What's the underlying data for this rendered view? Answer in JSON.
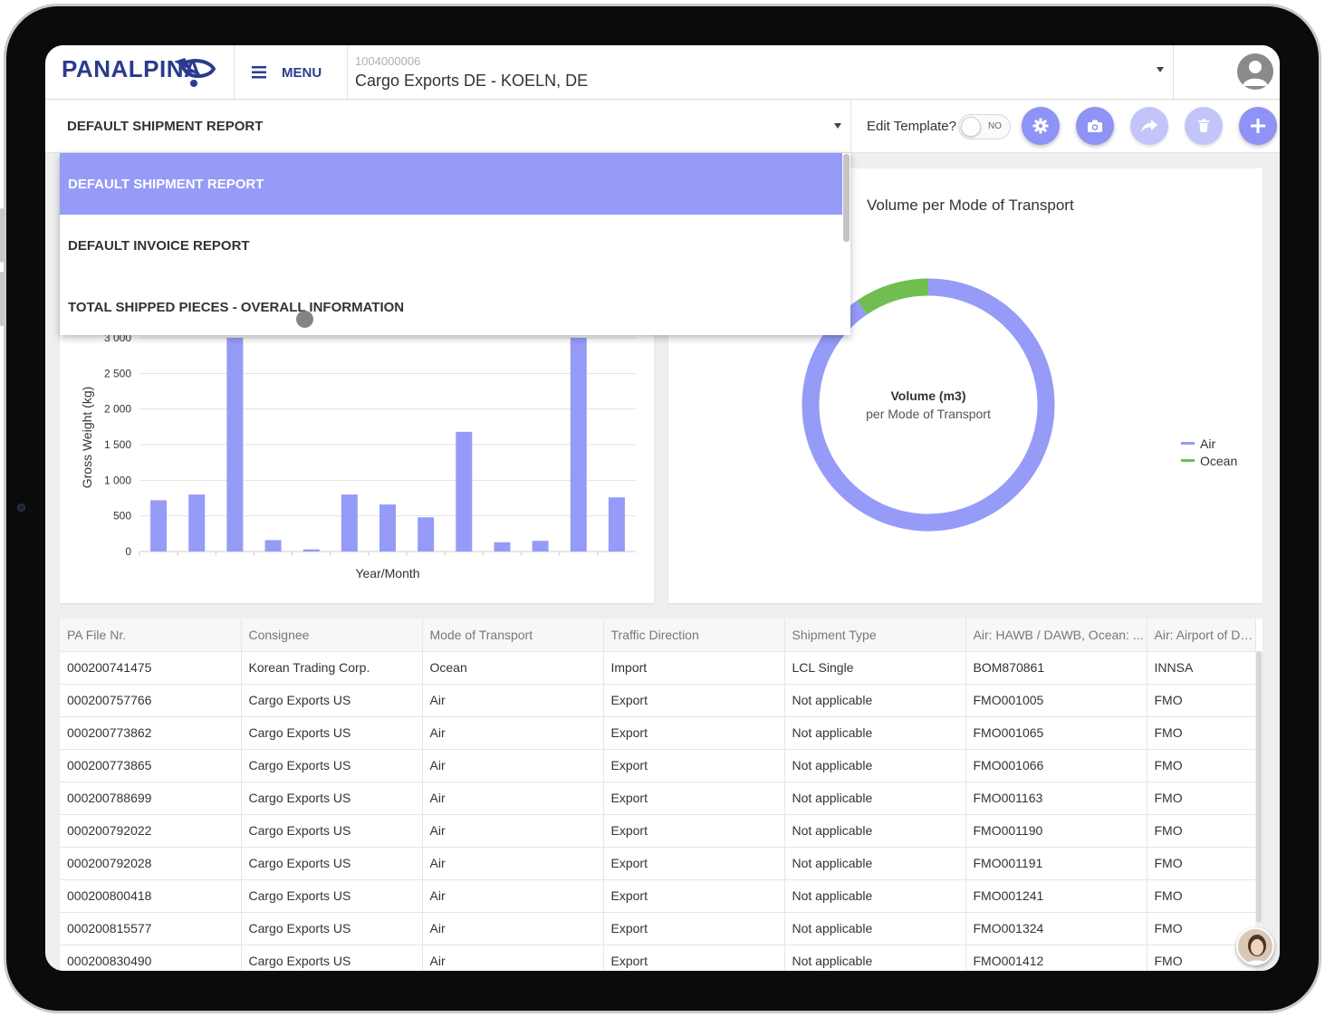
{
  "header": {
    "logo_text": "PANALPINA",
    "menu_label": "MENU",
    "account_id": "1004000006",
    "account_name": "Cargo Exports DE - KOELN, DE"
  },
  "toolbar": {
    "report_selected": "DEFAULT SHIPMENT REPORT",
    "edit_template_label": "Edit Template?",
    "toggle_state": "NO",
    "buttons": [
      "settings",
      "screenshot",
      "share",
      "delete",
      "add"
    ]
  },
  "dropdown": {
    "items": [
      "DEFAULT SHIPMENT REPORT",
      "DEFAULT INVOICE REPORT",
      "TOTAL SHIPPED PIECES - OVERALL INFORMATION"
    ],
    "selected_index": 0
  },
  "bar_chart": {
    "ylabel": "Gross Weight (kg)",
    "xlabel": "Year/Month",
    "yticks": [
      "0",
      "500",
      "1 000",
      "1 500",
      "2 000",
      "2 500",
      "3 000"
    ]
  },
  "donut_chart": {
    "title": "Volume per Mode of Transport",
    "center_title": "Volume (m3)",
    "center_subtitle": "per Mode of Transport",
    "legend": [
      {
        "label": "Air",
        "color": "#959bf7"
      },
      {
        "label": "Ocean",
        "color": "#6fbe4f"
      }
    ]
  },
  "chart_data": [
    {
      "type": "bar",
      "title": "",
      "xlabel": "Year/Month",
      "ylabel": "Gross Weight (kg)",
      "ylim": [
        0,
        3000
      ],
      "grid": true,
      "color": "#959bf7",
      "values": [
        720,
        800,
        3000,
        160,
        30,
        800,
        660,
        480,
        1680,
        130,
        150,
        3000,
        760
      ]
    },
    {
      "type": "pie",
      "title": "Volume per Mode of Transport",
      "series": [
        {
          "name": "Air",
          "values": [
            90.5
          ]
        },
        {
          "name": "Ocean",
          "values": [
            9.5
          ]
        }
      ],
      "colors": [
        "#959bf7",
        "#6fbe4f"
      ],
      "legend": "right"
    }
  ],
  "table": {
    "columns": [
      "PA File Nr.",
      "Consignee",
      "Mode of Transport",
      "Traffic Direction",
      "Shipment Type",
      "Air: HAWB / DAWB, Ocean: ...",
      "Air: Airport of Depa"
    ],
    "rows": [
      [
        "000200741475",
        "Korean Trading Corp.",
        "Ocean",
        "Import",
        "LCL Single",
        "BOM870861",
        "INNSA"
      ],
      [
        "000200757766",
        "Cargo Exports US",
        "Air",
        "Export",
        "Not applicable",
        "FMO001005",
        "FMO"
      ],
      [
        "000200773862",
        "Cargo Exports US",
        "Air",
        "Export",
        "Not applicable",
        "FMO001065",
        "FMO"
      ],
      [
        "000200773865",
        "Cargo Exports US",
        "Air",
        "Export",
        "Not applicable",
        "FMO001066",
        "FMO"
      ],
      [
        "000200788699",
        "Cargo Exports US",
        "Air",
        "Export",
        "Not applicable",
        "FMO001163",
        "FMO"
      ],
      [
        "000200792022",
        "Cargo Exports US",
        "Air",
        "Export",
        "Not applicable",
        "FMO001190",
        "FMO"
      ],
      [
        "000200792028",
        "Cargo Exports US",
        "Air",
        "Export",
        "Not applicable",
        "FMO001191",
        "FMO"
      ],
      [
        "000200800418",
        "Cargo Exports US",
        "Air",
        "Export",
        "Not applicable",
        "FMO001241",
        "FMO"
      ],
      [
        "000200815577",
        "Cargo Exports US",
        "Air",
        "Export",
        "Not applicable",
        "FMO001324",
        "FMO"
      ],
      [
        "000200830490",
        "Cargo Exports US",
        "Air",
        "Export",
        "Not applicable",
        "FMO001412",
        "FMO"
      ]
    ]
  }
}
